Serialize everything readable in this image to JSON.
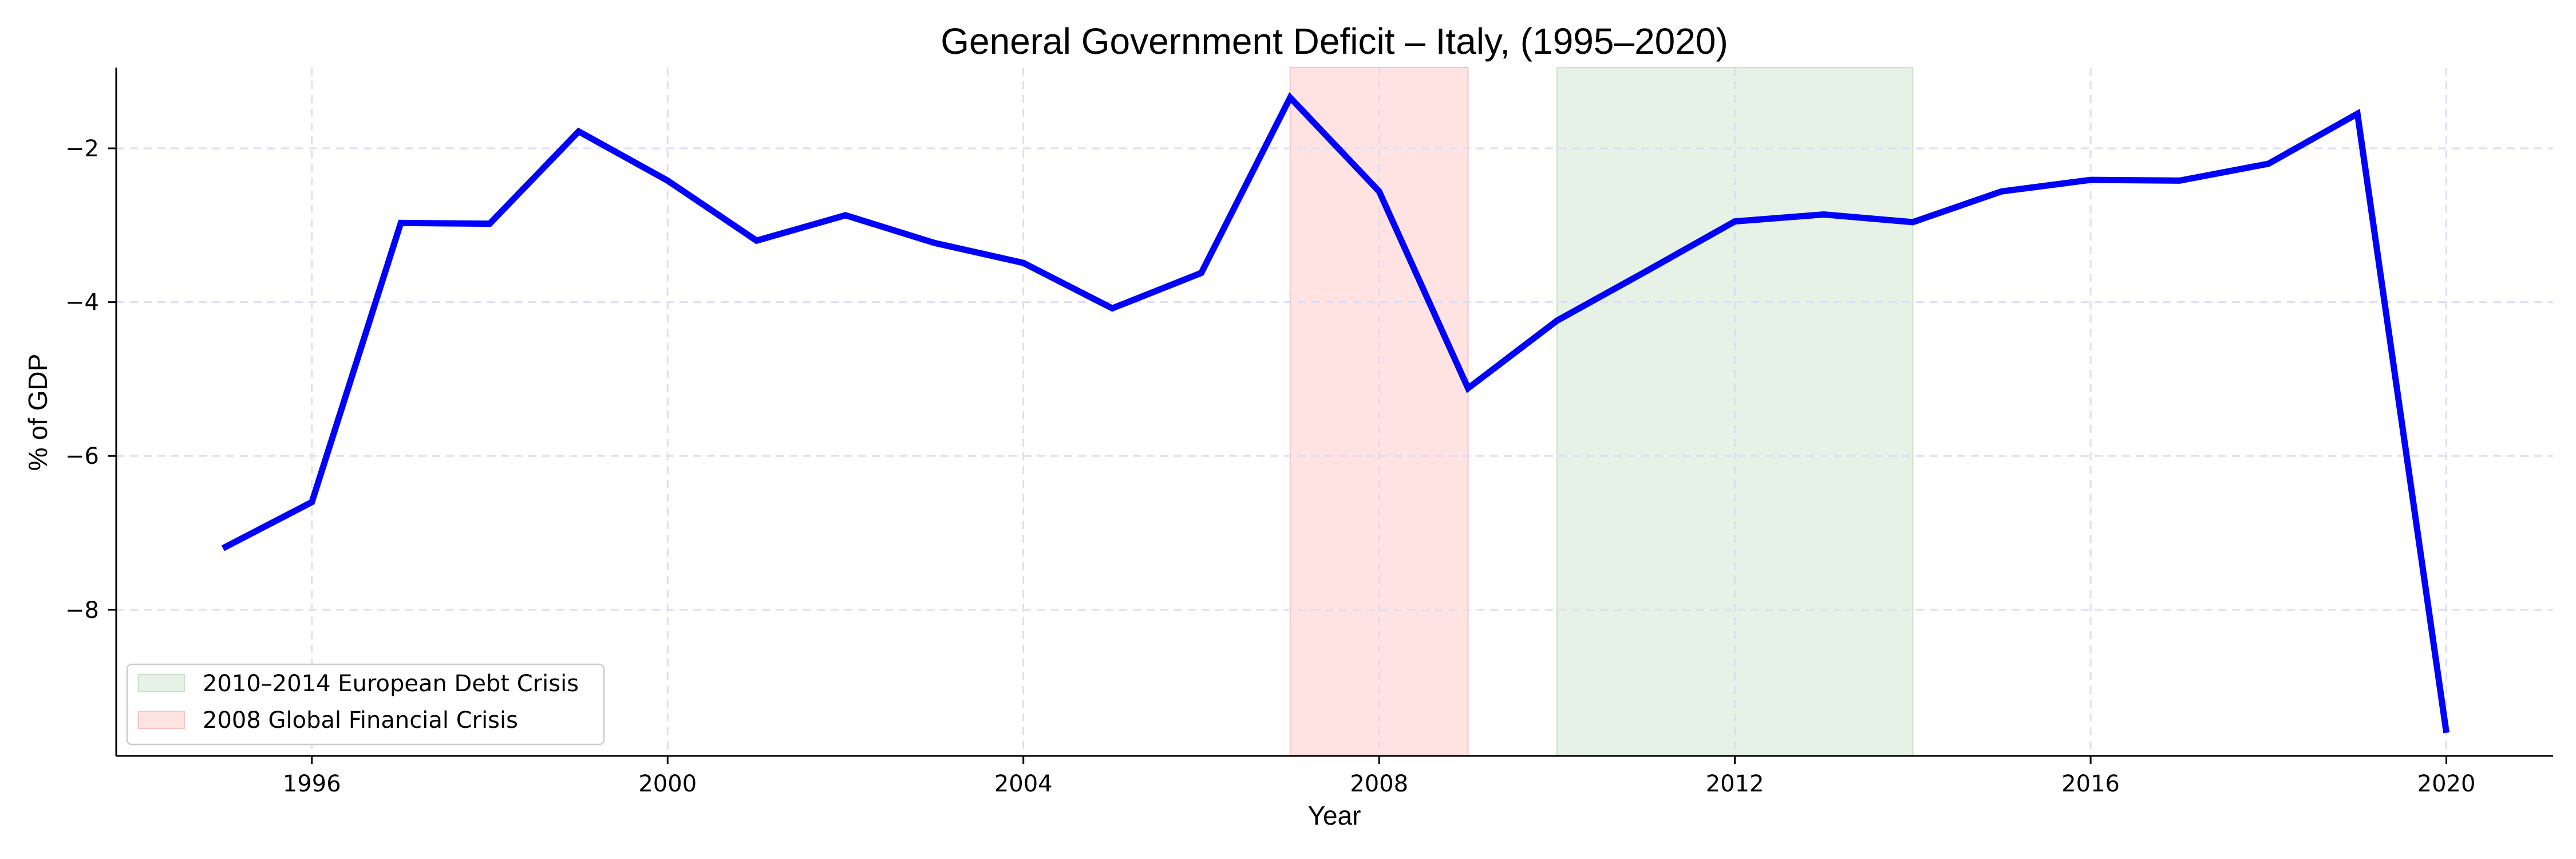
{
  "chart_data": {
    "type": "line",
    "title": "General Government Deficit – Italy, (1995–2020)",
    "xlabel": "Year",
    "ylabel": "% of GDP",
    "xlim": [
      1993.8,
      2021.2
    ],
    "ylim": [
      -9.9,
      -0.95
    ],
    "x_ticks": [
      1996,
      2000,
      2004,
      2008,
      2012,
      2016,
      2020
    ],
    "x_tick_labels": [
      "1996",
      "2000",
      "2004",
      "2008",
      "2012",
      "2016",
      "2020"
    ],
    "y_ticks": [
      -8,
      -6,
      -4,
      -2
    ],
    "y_tick_labels": [
      "−8",
      "−6",
      "−4",
      "−2"
    ],
    "grid": true,
    "legend_placement": "lower-left",
    "series": [
      {
        "color": "#0000ff",
        "x": [
          1995,
          1996,
          1997,
          1998,
          1999,
          2000,
          2001,
          2002,
          2003,
          2004,
          2005,
          2006,
          2007,
          2008,
          2009,
          2010,
          2011,
          2012,
          2013,
          2014,
          2015,
          2016,
          2017,
          2018,
          2019,
          2020
        ],
        "values": [
          -7.2,
          -6.6,
          -2.97,
          -2.98,
          -1.78,
          -2.42,
          -3.2,
          -2.87,
          -3.23,
          -3.49,
          -4.08,
          -3.62,
          -1.34,
          -2.56,
          -5.12,
          -4.24,
          -3.6,
          -2.95,
          -2.86,
          -2.96,
          -2.56,
          -2.41,
          -2.42,
          -2.2,
          -1.55,
          -9.6
        ]
      }
    ],
    "shaded_regions": [
      {
        "label": "2010–2014 European Debt Crisis",
        "x_start": 2010,
        "x_end": 2014,
        "fill": "#e5f2e5",
        "edge": "#c7e3c7"
      },
      {
        "label": "2008 Global Financial Crisis",
        "x_start": 2007,
        "x_end": 2009,
        "fill": "#ffe3e3",
        "edge": "#f7c3c3"
      }
    ]
  }
}
